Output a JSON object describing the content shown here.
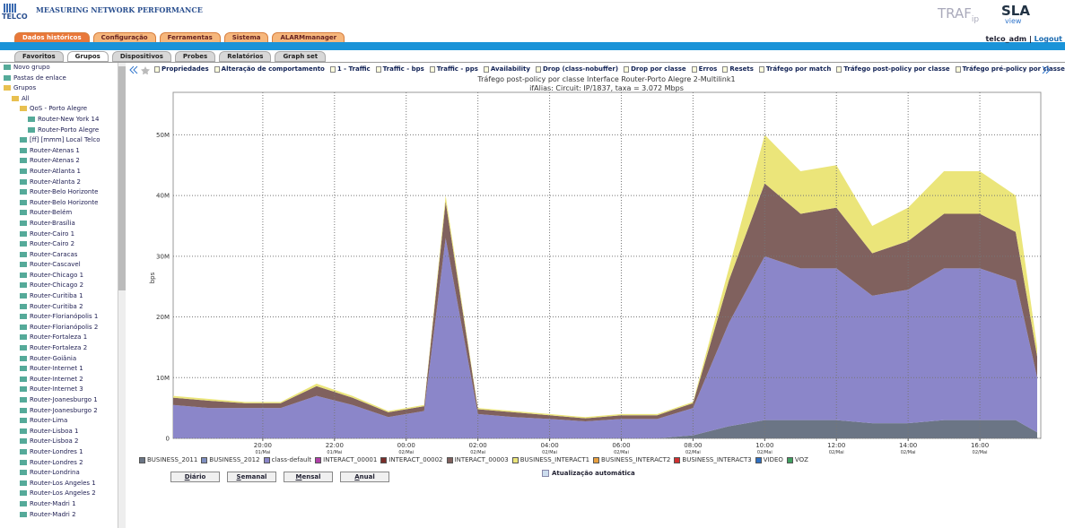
{
  "header": {
    "logo": "TELCO",
    "title": "MEASURING NETWORK PERFORMANCE",
    "brand": "TRAF",
    "brand_sub": "ip",
    "product": "SLA",
    "product_sub": "view",
    "user": "telco_adm",
    "separator": "|",
    "logout": "Logout"
  },
  "main_tabs": [
    "Dados históricos",
    "Configuração",
    "Ferramentas",
    "Sistema",
    "ALARMmanager"
  ],
  "sub_tabs": [
    "Favoritos",
    "Grupos",
    "Dispositivos",
    "Probes",
    "Relatórios",
    "Graph set"
  ],
  "tree": [
    {
      "label": "Novo grupo"
    },
    {
      "label": "Pastas de enlace"
    },
    {
      "label": "Grupos",
      "children": [
        {
          "label": "All",
          "children": [
            {
              "label": "QoS - Porto Alegre",
              "children": [
                {
                  "label": "Router-New York 14"
                },
                {
                  "label": "Router-Porto Alegre"
                }
              ]
            },
            {
              "label": "[ff] [mmm] Local Telco"
            },
            {
              "label": "Router-Atenas 1"
            },
            {
              "label": "Router-Atenas 2"
            },
            {
              "label": "Router-Atlanta 1"
            },
            {
              "label": "Router-Atlanta 2"
            },
            {
              "label": "Router-Belo Horizonte"
            },
            {
              "label": "Router-Belo Horizonte"
            },
            {
              "label": "Router-Belém"
            },
            {
              "label": "Router-Brasília"
            },
            {
              "label": "Router-Cairo 1"
            },
            {
              "label": "Router-Cairo 2"
            },
            {
              "label": "Router-Caracas"
            },
            {
              "label": "Router-Cascavel"
            },
            {
              "label": "Router-Chicago 1"
            },
            {
              "label": "Router-Chicago 2"
            },
            {
              "label": "Router-Curitiba 1"
            },
            {
              "label": "Router-Curitiba 2"
            },
            {
              "label": "Router-Florianópolis 1"
            },
            {
              "label": "Router-Florianópolis 2"
            },
            {
              "label": "Router-Fortaleza 1"
            },
            {
              "label": "Router-Fortaleza 2"
            },
            {
              "label": "Router-Goiânia"
            },
            {
              "label": "Router-Internet 1"
            },
            {
              "label": "Router-Internet 2"
            },
            {
              "label": "Router-Internet 3"
            },
            {
              "label": "Router-Joanesburgo 1"
            },
            {
              "label": "Router-Joanesburgo 2"
            },
            {
              "label": "Router-Lima"
            },
            {
              "label": "Router-Lisboa 1"
            },
            {
              "label": "Router-Lisboa 2"
            },
            {
              "label": "Router-Londres 1"
            },
            {
              "label": "Router-Londres 2"
            },
            {
              "label": "Router-Londrina"
            },
            {
              "label": "Router-Los Angeles 1"
            },
            {
              "label": "Router-Los Angeles 2"
            },
            {
              "label": "Router-Madri 1"
            },
            {
              "label": "Router-Madri 2"
            }
          ]
        }
      ]
    }
  ],
  "toolbar": [
    "Propriedades",
    "Alteração de comportamento",
    "1 - Traffic",
    "Traffic - bps",
    "Traffic - pps",
    "Availability",
    "Drop (class-nobuffer)",
    "Drop por classe",
    "Erros",
    "Resets",
    "Tráfego por match",
    "Tráfego post-policy por classe",
    "Tráfego pré-policy por classe"
  ],
  "buttons": [
    "Diário",
    "Semanal",
    "Mensal",
    "Anual"
  ],
  "auto_update": "Atualização automática",
  "chart_data": {
    "type": "stacked_area",
    "title": "Tráfego post-policy por classe Interface Router-Porto Alegre 2-Multilink1",
    "subtitle": "ifAlias: Circuit: IP/1837, taxa = 3.072 Mbps",
    "y_label": "bps",
    "grid": true,
    "x": [
      17.5,
      18.5,
      19.5,
      20.5,
      21.5,
      22.5,
      23.5,
      24.5,
      25.1,
      26,
      27,
      28,
      29,
      30,
      31,
      32,
      33,
      34,
      35,
      36,
      37,
      38,
      39,
      40,
      41,
      41.6
    ],
    "xlim": [
      17.5,
      41.7
    ],
    "xticks": [
      {
        "value": 20,
        "label": "20:00"
      },
      {
        "value": 22,
        "label": "22:00"
      },
      {
        "value": 24,
        "label": "00:00"
      },
      {
        "value": 26,
        "label": "02:00"
      },
      {
        "value": 28,
        "label": "04:00"
      },
      {
        "value": 30,
        "label": "06:00"
      },
      {
        "value": 32,
        "label": "08:00"
      },
      {
        "value": 34,
        "label": "10:00"
      },
      {
        "value": 36,
        "label": "12:00"
      },
      {
        "value": 38,
        "label": "14:00"
      },
      {
        "value": 40,
        "label": "16:00"
      }
    ],
    "xtick_dates": [
      "01/Mai",
      "01/Mai",
      "02/Mai",
      "02/Mai",
      "02/Mai",
      "02/Mai",
      "02/Mai",
      "02/Mai",
      "02/Mai",
      "02/Mai",
      "02/Mai"
    ],
    "ylim": [
      0,
      57000000
    ],
    "yticks": [
      0,
      {
        "value": 10000000,
        "label": "10M"
      },
      {
        "value": 20000000,
        "label": "20M"
      },
      {
        "value": 30000000,
        "label": "30M"
      },
      {
        "value": 40000000,
        "label": "40M"
      },
      {
        "value": 50000000,
        "label": "50M"
      }
    ],
    "series": [
      {
        "name": "BUSINESS_2011",
        "color": "#6b7585",
        "values": [
          0,
          0,
          0,
          0,
          0,
          0,
          0,
          0,
          0,
          0,
          0,
          0,
          0,
          0,
          0,
          500000.0,
          2000000.0,
          3000000.0,
          3000000.0,
          3000000.0,
          2500000.0,
          2500000.0,
          3000000.0,
          3000000.0,
          3000000.0,
          1000000.0
        ]
      },
      {
        "name": "BUSINESS_2012",
        "color": "#7f8fbf",
        "values": [
          0,
          0,
          0,
          0,
          0,
          0,
          0,
          0,
          0,
          0,
          0,
          0,
          0,
          0,
          0,
          0,
          0,
          0,
          0,
          0,
          0,
          0,
          0,
          0,
          0,
          0
        ]
      },
      {
        "name": "class-default",
        "color": "#8b86c9",
        "values": [
          5500000.0,
          5000000.0,
          5000000.0,
          5000000.0,
          7000000.0,
          5500000.0,
          3500000.0,
          4500000.0,
          33000000.0,
          4000000.0,
          3500000.0,
          3200000.0,
          2800000.0,
          3200000.0,
          3200000.0,
          4500000.0,
          17000000.0,
          27000000.0,
          25000000.0,
          25000000.0,
          21000000.0,
          22000000.0,
          25000000.0,
          25000000.0,
          23000000.0,
          9000000.0
        ]
      },
      {
        "name": "INTERACT_00001",
        "color": "#b040a8",
        "values": [
          0,
          0,
          0,
          0,
          0,
          0,
          0,
          0,
          0,
          0,
          0,
          0,
          0,
          0,
          0,
          0,
          0,
          0,
          0,
          0,
          0,
          0,
          0,
          0,
          0,
          0
        ]
      },
      {
        "name": "INTERACT_00002",
        "color": "#7a2e2a",
        "values": [
          0,
          0,
          0,
          0,
          0,
          0,
          0,
          0,
          0,
          0,
          0,
          0,
          0,
          0,
          0,
          0,
          0,
          0,
          0,
          0,
          0,
          0,
          0,
          0,
          0,
          0
        ]
      },
      {
        "name": "INTERACT_00003",
        "color": "#80615e",
        "values": [
          1200000.0,
          1200000.0,
          800000.0,
          800000.0,
          1600000.0,
          1200000.0,
          800000.0,
          800000.0,
          6000000.0,
          800000.0,
          800000.0,
          600000.0,
          500000.0,
          600000.0,
          600000.0,
          800000.0,
          7000000.0,
          12000000.0,
          9000000.0,
          10000000.0,
          7000000.0,
          8000000.0,
          9000000.0,
          9000000.0,
          8000000.0,
          3500000.0
        ]
      },
      {
        "name": "BUSINESS_INTERACT1",
        "color": "#ebe57a",
        "values": [
          300000.0,
          300000.0,
          200000.0,
          200000.0,
          400000.0,
          300000.0,
          200000.0,
          200000.0,
          1000000.0,
          200000.0,
          200000.0,
          200000.0,
          200000.0,
          200000.0,
          200000.0,
          200000.0,
          2000000.0,
          8000000.0,
          7000000.0,
          7000000.0,
          4500000.0,
          5500000.0,
          7000000.0,
          7000000.0,
          6000000.0,
          1500000.0
        ]
      },
      {
        "name": "BUSINESS_INTERACT2",
        "color": "#e8a040",
        "values": [
          0,
          0,
          0,
          0,
          0,
          0,
          0,
          0,
          0,
          0,
          0,
          0,
          0,
          0,
          0,
          0,
          0,
          0,
          0,
          0,
          0,
          0,
          0,
          0,
          0,
          0
        ]
      },
      {
        "name": "BUSINESS_INTERACT3",
        "color": "#d03030",
        "values": [
          0,
          0,
          0,
          0,
          0,
          0,
          0,
          0,
          0,
          0,
          0,
          0,
          0,
          0,
          0,
          0,
          0,
          0,
          0,
          0,
          0,
          0,
          0,
          0,
          0,
          0
        ]
      },
      {
        "name": "VIDEO",
        "color": "#3070c0",
        "values": [
          0,
          0,
          0,
          0,
          0,
          0,
          0,
          0,
          0,
          0,
          0,
          0,
          0,
          0,
          0,
          0,
          0,
          0,
          0,
          0,
          0,
          0,
          0,
          0,
          0,
          0
        ]
      },
      {
        "name": "VOZ",
        "color": "#40a060",
        "values": [
          0,
          0,
          0,
          0,
          0,
          0,
          0,
          0,
          0,
          0,
          0,
          0,
          0,
          0,
          0,
          0,
          0,
          0,
          0,
          0,
          0,
          0,
          0,
          0,
          0,
          0
        ]
      }
    ]
  }
}
